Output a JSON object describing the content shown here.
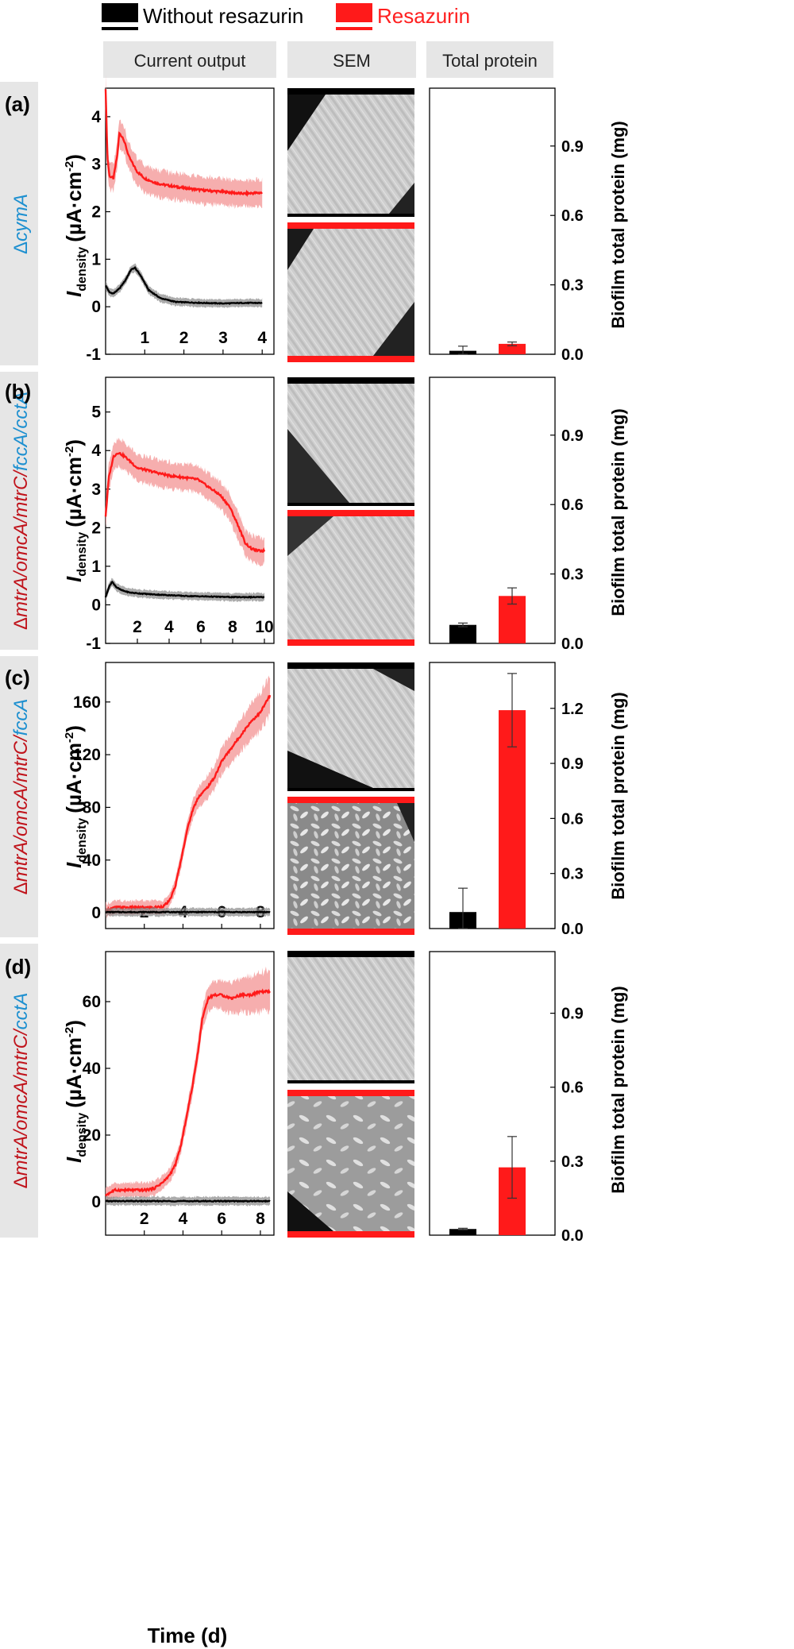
{
  "legend": {
    "without": {
      "label": "Without resazurin",
      "color": "#000000"
    },
    "with": {
      "label": "Resazurin",
      "color": "#ff2020"
    }
  },
  "columns": {
    "current": "Current output",
    "sem": "SEM",
    "protein": "Total protein"
  },
  "axes": {
    "y_current_main": "I",
    "y_current_sub": "density",
    "y_current_unit": "(µA·cm",
    "y_current_exp": "-2",
    "y_current_close": ")",
    "y_protein": "Biofilm total protein (mg)",
    "x": "Time (d)"
  },
  "strain_parts": {
    "delta": "Δ",
    "mtrA": "mtrA/",
    "omcA": "omcA/",
    "mtrC": "mtrC/",
    "fccA": "fccA",
    "fccA_slash": "fccA/",
    "cctA": "cctA",
    "cymA": "cymA"
  },
  "colors": {
    "red_line": "#ff1a1a",
    "red_band": "#f5a0a0",
    "black_band": "#888888",
    "strain_red": "#c0141c",
    "strain_blue": "#1e90d0",
    "header_bg": "#e6e6e6"
  },
  "chart_data": [
    {
      "panel": "(a)",
      "type": "line",
      "xlim": [
        0,
        4.3
      ],
      "ylim": [
        -1,
        4.6
      ],
      "xticks": [
        1,
        2,
        3,
        4
      ],
      "yticks": [
        -1,
        0,
        1,
        2,
        3,
        4
      ],
      "series": [
        {
          "name": "Resazurin",
          "x": [
            0,
            0.05,
            0.1,
            0.2,
            0.3,
            0.35,
            0.45,
            0.6,
            0.8,
            1.0,
            1.3,
            1.6,
            2.0,
            2.5,
            3.0,
            3.5,
            4.0
          ],
          "y": [
            4.6,
            3.1,
            2.75,
            2.7,
            3.2,
            3.65,
            3.55,
            3.15,
            2.85,
            2.7,
            2.6,
            2.55,
            2.5,
            2.45,
            2.42,
            2.38,
            2.4
          ]
        },
        {
          "name": "Without resazurin",
          "x": [
            0,
            0.1,
            0.2,
            0.35,
            0.5,
            0.65,
            0.75,
            0.9,
            1.1,
            1.4,
            1.8,
            2.5,
            3.0,
            3.5,
            4.0
          ],
          "y": [
            0.45,
            0.3,
            0.28,
            0.38,
            0.55,
            0.78,
            0.82,
            0.65,
            0.35,
            0.18,
            0.1,
            0.08,
            0.07,
            0.08,
            0.08
          ]
        }
      ],
      "bars": {
        "categories": [
          "Without resazurin",
          "Resazurin"
        ],
        "values": [
          0.015,
          0.045
        ],
        "errors": [
          0.02,
          0.008
        ]
      },
      "protein_ylim": [
        0,
        1.15
      ],
      "protein_yticks": [
        0.0,
        0.3,
        0.6,
        0.9
      ]
    },
    {
      "panel": "(b)",
      "type": "line",
      "xlim": [
        0,
        10.6
      ],
      "ylim": [
        -1,
        5.9
      ],
      "xticks": [
        2,
        4,
        6,
        8,
        10
      ],
      "yticks": [
        -1,
        0,
        1,
        2,
        3,
        4,
        5
      ],
      "series": [
        {
          "name": "Resazurin",
          "x": [
            0,
            0.2,
            0.5,
            0.8,
            1.2,
            1.6,
            2.0,
            3.0,
            4.0,
            5.0,
            5.8,
            6.5,
            7.2,
            7.8,
            8.3,
            8.8,
            9.2,
            9.6,
            10.0
          ],
          "y": [
            2.3,
            3.3,
            3.85,
            3.95,
            3.85,
            3.7,
            3.55,
            3.45,
            3.35,
            3.3,
            3.25,
            3.05,
            2.85,
            2.55,
            2.1,
            1.6,
            1.45,
            1.4,
            1.4
          ]
        },
        {
          "name": "Without resazurin",
          "x": [
            0,
            0.2,
            0.4,
            0.7,
            1.0,
            1.5,
            2.0,
            3.0,
            4.0,
            5.0,
            6.0,
            7.0,
            8.0,
            9.0,
            10.0
          ],
          "y": [
            0.2,
            0.45,
            0.6,
            0.45,
            0.38,
            0.32,
            0.3,
            0.27,
            0.25,
            0.23,
            0.22,
            0.21,
            0.2,
            0.2,
            0.2
          ]
        }
      ],
      "bars": {
        "categories": [
          "Without resazurin",
          "Resazurin"
        ],
        "values": [
          0.08,
          0.205
        ],
        "errors": [
          0.008,
          0.035
        ]
      },
      "protein_ylim": [
        0,
        1.15
      ],
      "protein_yticks": [
        0.0,
        0.3,
        0.6,
        0.9
      ]
    },
    {
      "panel": "(c)",
      "type": "line",
      "xlim": [
        0,
        8.7
      ],
      "ylim": [
        -12,
        190
      ],
      "xticks": [
        2,
        4,
        6,
        8
      ],
      "yticks": [
        0,
        40,
        80,
        120,
        160
      ],
      "series": [
        {
          "name": "Resazurin",
          "x": [
            0,
            0.5,
            1.0,
            1.5,
            2.0,
            2.5,
            3.0,
            3.3,
            3.6,
            3.9,
            4.2,
            4.5,
            4.8,
            5.2,
            5.6,
            6.0,
            6.5,
            7.0,
            7.5,
            8.0,
            8.3,
            8.5
          ],
          "y": [
            2,
            4,
            4,
            4,
            4,
            4,
            5,
            9,
            20,
            40,
            62,
            78,
            88,
            94,
            102,
            115,
            125,
            135,
            145,
            152,
            160,
            165
          ]
        },
        {
          "name": "Without resazurin",
          "x": [
            0,
            2,
            4,
            6,
            8,
            8.5
          ],
          "y": [
            0.5,
            0.5,
            0.5,
            0.5,
            0.5,
            0.5
          ]
        }
      ],
      "bars": {
        "categories": [
          "Without resazurin",
          "Resazurin"
        ],
        "values": [
          0.09,
          1.19
        ],
        "errors": [
          0.13,
          0.2
        ]
      },
      "protein_ylim": [
        0,
        1.45
      ],
      "protein_yticks": [
        0.0,
        0.3,
        0.6,
        0.9,
        1.2
      ]
    },
    {
      "panel": "(d)",
      "type": "line",
      "xlim": [
        0,
        8.7
      ],
      "ylim": [
        -10,
        75
      ],
      "xticks": [
        2,
        4,
        6,
        8
      ],
      "yticks": [
        0,
        20,
        40,
        60
      ],
      "series": [
        {
          "name": "Resazurin",
          "x": [
            0,
            0.3,
            0.5,
            1.0,
            1.5,
            2.0,
            2.5,
            3.0,
            3.3,
            3.6,
            3.9,
            4.2,
            4.5,
            4.8,
            5.0,
            5.3,
            5.6,
            6.0,
            6.5,
            7.0,
            7.5,
            8.0,
            8.5
          ],
          "y": [
            2,
            3,
            3.5,
            3.5,
            3.5,
            3.5,
            4,
            6,
            8,
            11,
            17,
            26,
            35,
            46,
            55,
            61,
            62,
            62,
            61,
            62,
            62,
            63,
            63
          ]
        },
        {
          "name": "Without resazurin",
          "x": [
            0,
            2,
            4,
            6,
            8,
            8.5
          ],
          "y": [
            0.2,
            0.2,
            0.2,
            0.2,
            0.2,
            0.2
          ]
        }
      ],
      "bars": {
        "categories": [
          "Without resazurin",
          "Resazurin"
        ],
        "values": [
          0.025,
          0.275
        ],
        "errors": [
          0.003,
          0.125
        ]
      },
      "protein_ylim": [
        0,
        1.15
      ],
      "protein_yticks": [
        0.0,
        0.3,
        0.6,
        0.9
      ]
    }
  ]
}
